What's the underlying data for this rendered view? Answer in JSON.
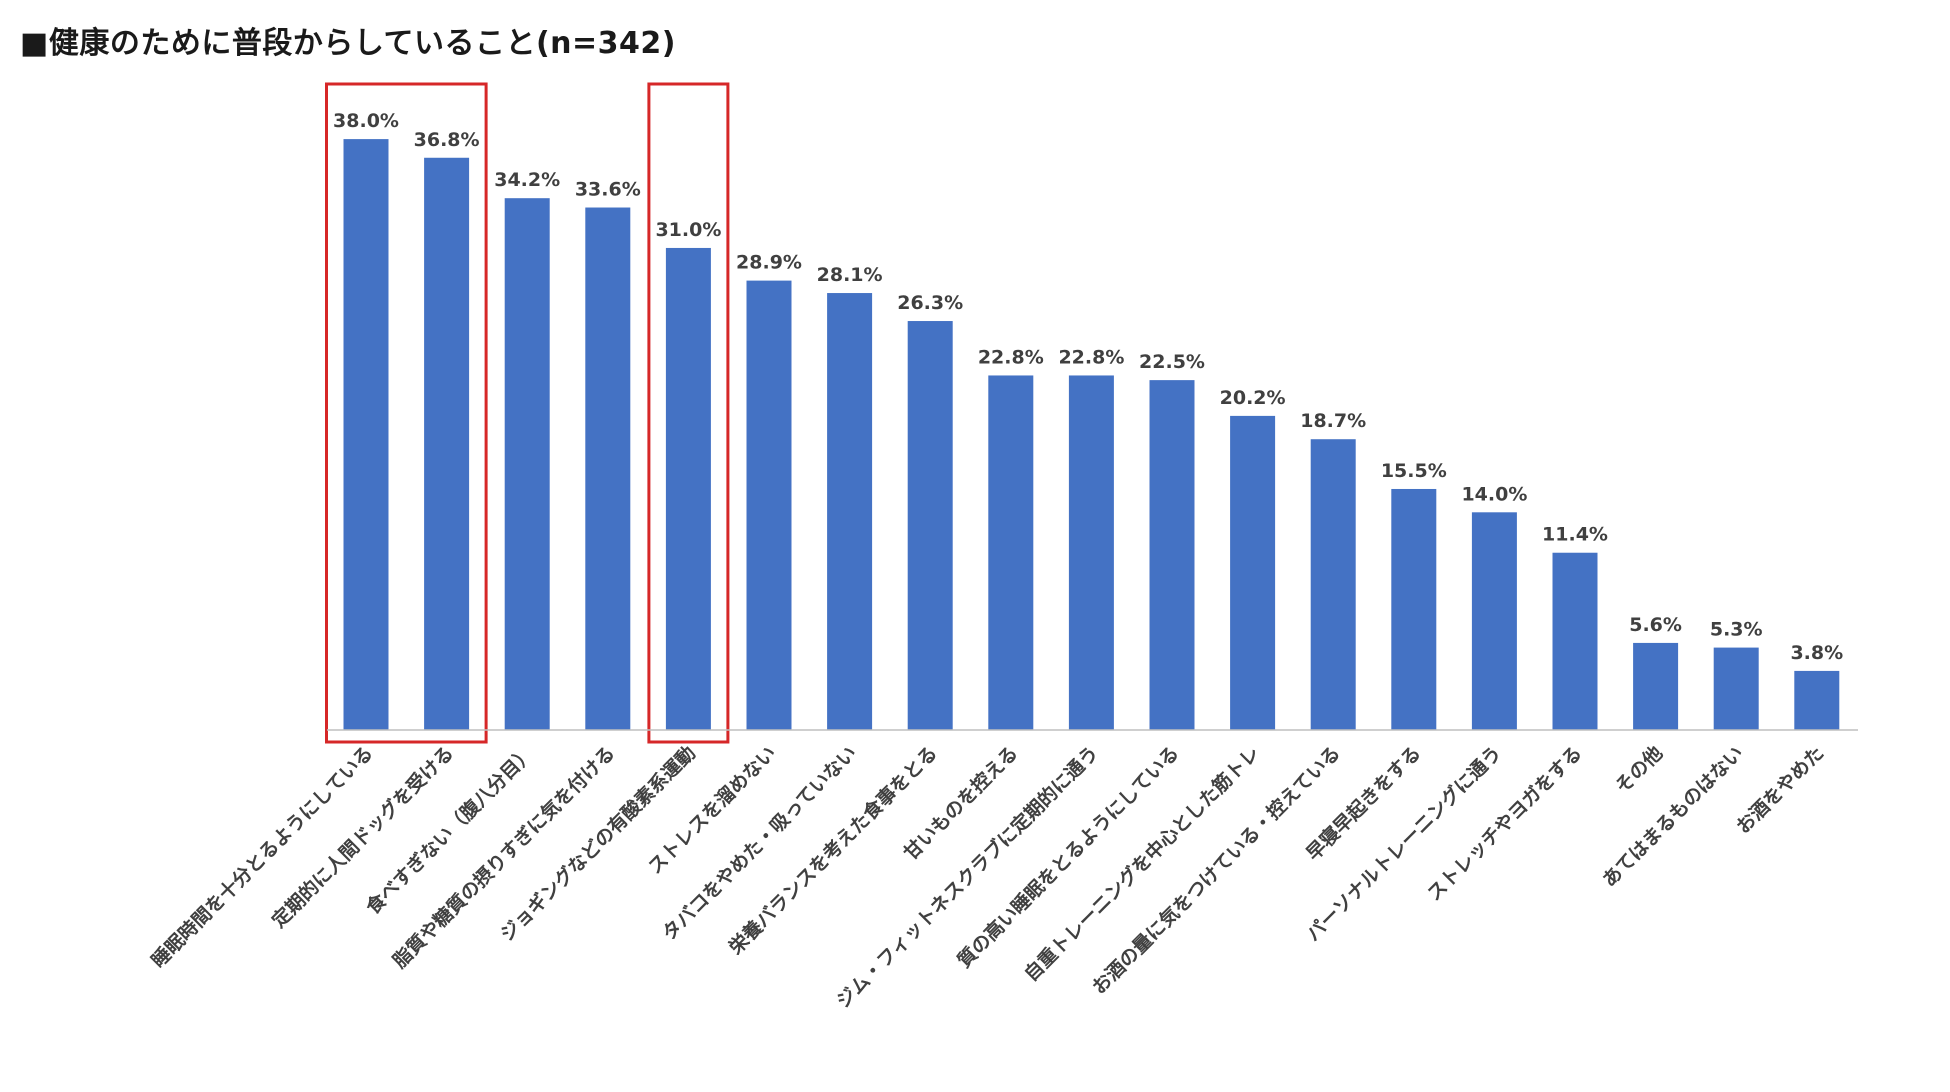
{
  "title": "■健康のために普段からしていること(n=342)",
  "colors": {
    "bar": "#4472C4",
    "highlight": "#d62728",
    "axis": "#bfbfbf",
    "label": "#404040"
  },
  "chart_data": {
    "type": "bar",
    "title": "■健康のために普段からしていること(n=342)",
    "xlabel": "",
    "ylabel": "",
    "unit": "%",
    "ylim": [
      0,
      40
    ],
    "grid": false,
    "legend": "none",
    "categories": [
      "睡眠時間を十分とるようにしている",
      "定期的に人間ドッグを受ける",
      "食べすぎない（腹八分目）",
      "脂質や糖質の摂りすぎに気を付ける",
      "ジョギングなどの有酸素系運動",
      "ストレスを溜めない",
      "タバコをやめた・吸っていない",
      "栄養バランスを考えた食事をとる",
      "甘いものを控える",
      "ジム・フィットネスクラブに定期的に通う",
      "質の高い睡眠をとるようにしている",
      "自重トレーニングを中心とした筋トレ",
      "お酒の量に気をつけている・控えている",
      "早寝早起きをする",
      "パーソナルトレーニングに通う",
      "ストレッチやヨガをする",
      "その他",
      "あてはまるものはない",
      "お酒をやめた"
    ],
    "values": [
      38.0,
      36.8,
      34.2,
      33.6,
      31.0,
      28.9,
      28.1,
      26.3,
      22.8,
      22.8,
      22.5,
      20.2,
      18.7,
      15.5,
      14.0,
      11.4,
      5.6,
      5.3,
      3.8
    ],
    "value_labels": [
      "38.0%",
      "36.8%",
      "34.2%",
      "33.6%",
      "31.0%",
      "28.9%",
      "28.1%",
      "26.3%",
      "22.8%",
      "22.8%",
      "22.5%",
      "20.2%",
      "18.7%",
      "15.5%",
      "14.0%",
      "11.4%",
      "5.6%",
      "5.3%",
      "3.8%"
    ],
    "highlight_groups": [
      [
        0,
        1
      ],
      [
        4
      ]
    ]
  }
}
